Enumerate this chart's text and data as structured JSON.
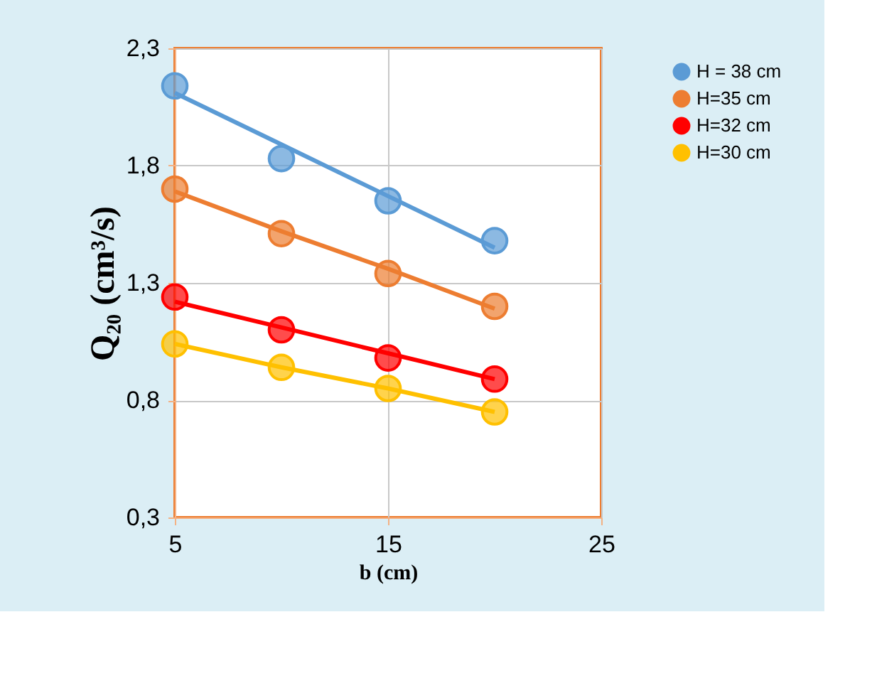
{
  "chart_data": {
    "type": "scatter",
    "xlabel": "b (cm)",
    "ylabel": "Q₂₀ (cm³/s)",
    "x": [
      5,
      10,
      15,
      20
    ],
    "series": [
      {
        "name": "H = 38 cm",
        "color": "#5b9bd5",
        "values": [
          2.14,
          1.83,
          1.65,
          1.48
        ]
      },
      {
        "name": "H=35 cm",
        "color": "#ed7d31",
        "values": [
          1.7,
          1.51,
          1.34,
          1.2
        ]
      },
      {
        "name": "H=32 cm",
        "color": "#ff0000",
        "values": [
          1.24,
          1.1,
          0.98,
          0.89
        ]
      },
      {
        "name": "H=30 cm",
        "color": "#ffc000",
        "values": [
          1.04,
          0.94,
          0.85,
          0.75
        ]
      },
      {
        "type": "line",
        "marker": "none",
        "color": "#5b9bd5",
        "values": [
          2.11,
          1.89,
          1.67,
          1.45
        ]
      },
      {
        "type": "line",
        "marker": "none",
        "color": "#ed7d31",
        "values": [
          1.69,
          1.52,
          1.36,
          1.19
        ]
      },
      {
        "type": "line",
        "marker": "none",
        "color": "#ff0000",
        "values": [
          1.22,
          1.11,
          1.0,
          0.89
        ]
      },
      {
        "type": "line",
        "marker": "none",
        "color": "#ffc000",
        "values": [
          1.04,
          0.94,
          0.85,
          0.75
        ]
      }
    ],
    "xlim": [
      5,
      25
    ],
    "xticks": [
      5,
      15,
      25
    ],
    "ylim": [
      0.3,
      2.3
    ],
    "yticks": [
      {
        "value": 0.3,
        "label": "0,3"
      },
      {
        "value": 0.8,
        "label": "0,8"
      },
      {
        "value": 1.3,
        "label": "1,3"
      },
      {
        "value": 1.8,
        "label": "1,8"
      },
      {
        "value": 2.3,
        "label": "2,3"
      }
    ],
    "grid": true,
    "legend": "right",
    "marker": "circle",
    "line_style": "solid"
  }
}
